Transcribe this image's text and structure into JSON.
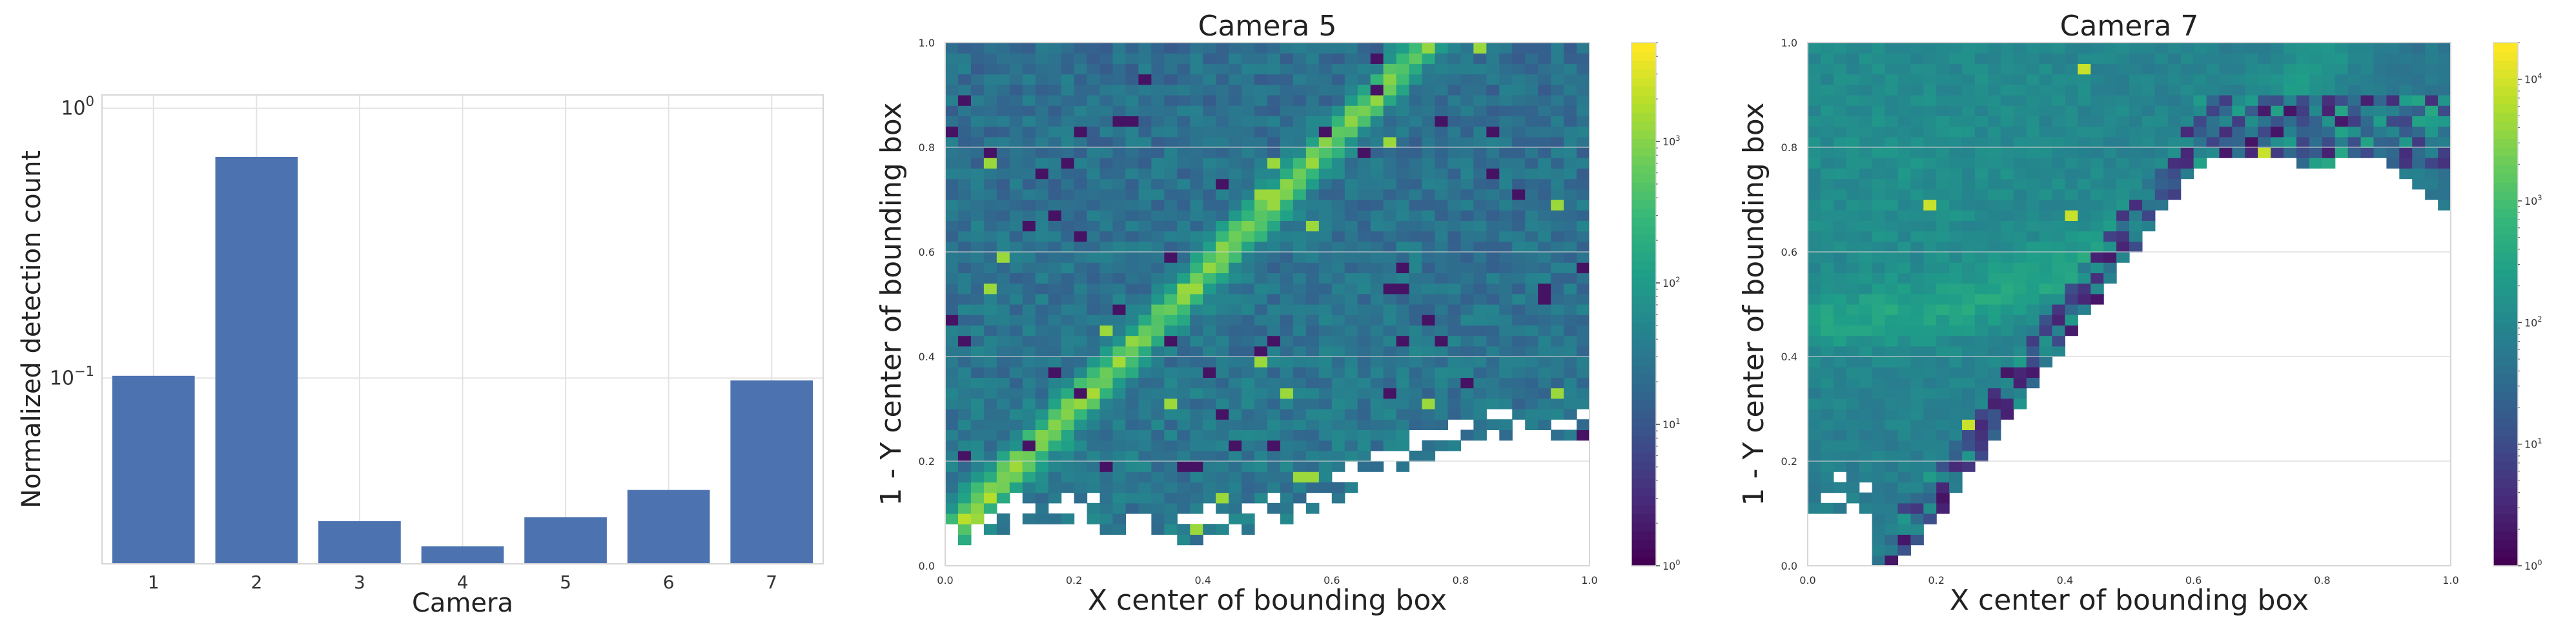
{
  "chart_data": [
    {
      "type": "bar",
      "xlabel": "Camera",
      "ylabel": "Normalized detection count",
      "yscale": "log",
      "ylim": [
        0.0205,
        1.12
      ],
      "yticks": [
        {
          "value": 0.1,
          "base": "10",
          "exp": "−1"
        },
        {
          "value": 1,
          "base": "10",
          "exp": "0"
        }
      ],
      "categories": [
        "1",
        "2",
        "3",
        "4",
        "5",
        "6",
        "7"
      ],
      "values": [
        0.102,
        0.66,
        0.0295,
        0.0238,
        0.0305,
        0.0385,
        0.098
      ],
      "bar_color": "#4c72b0",
      "grid": true
    },
    {
      "type": "heatmap",
      "title": "Camera 5",
      "xlabel": "X center of bounding box",
      "ylabel": "1 - Y center of bounding box",
      "xlim": [
        0,
        1
      ],
      "ylim": [
        0,
        1
      ],
      "xticks": [
        "0.0",
        "0.2",
        "0.4",
        "0.6",
        "0.8",
        "1.0"
      ],
      "yticks": [
        "0.0",
        "0.2",
        "0.4",
        "0.6",
        "0.8",
        "1.0"
      ],
      "colormap": "viridis",
      "color_scale": "log",
      "colorbar_range": [
        1,
        5000
      ],
      "colorbar_ticks": [
        {
          "value": 1,
          "base": "10",
          "exp": "0"
        },
        {
          "value": 10,
          "base": "10",
          "exp": "1"
        },
        {
          "value": 100,
          "base": "10",
          "exp": "2"
        },
        {
          "value": 1000,
          "base": "10",
          "exp": "3"
        }
      ],
      "bins": 50,
      "description_hint": "diagonal dense ridge from (0.12,0.2) to (0.75,1.0); empty region bottom-right below ~0.25"
    },
    {
      "type": "heatmap",
      "title": "Camera 7",
      "xlabel": "X center of bounding box",
      "ylabel": "1 - Y center of bounding box",
      "xlim": [
        0,
        1
      ],
      "ylim": [
        0,
        1
      ],
      "xticks": [
        "0.0",
        "0.2",
        "0.4",
        "0.6",
        "0.8",
        "1.0"
      ],
      "yticks": [
        "0.0",
        "0.2",
        "0.4",
        "0.6",
        "0.8",
        "1.0"
      ],
      "colormap": "viridis",
      "color_scale": "log",
      "colorbar_range": [
        1,
        20000
      ],
      "colorbar_ticks": [
        {
          "value": 1,
          "base": "10",
          "exp": "0"
        },
        {
          "value": 10,
          "base": "10",
          "exp": "1"
        },
        {
          "value": 100,
          "base": "10",
          "exp": "2"
        },
        {
          "value": 1000,
          "base": "10",
          "exp": "3"
        },
        {
          "value": 10000,
          "base": "10",
          "exp": "4"
        }
      ],
      "bins": 50,
      "description_hint": "fan-shaped coverage in upper-left; empty region bottom-right bounded by curve from (0.0,0.1) to (0.6,0.8)"
    }
  ]
}
